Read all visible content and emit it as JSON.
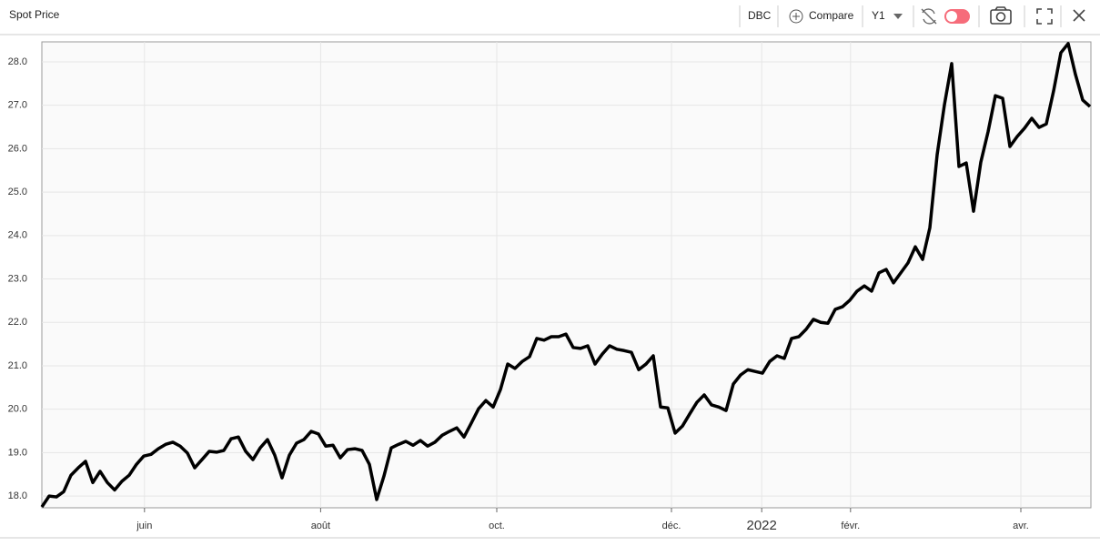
{
  "chart_data": {
    "type": "line",
    "title": "Spot Price",
    "toolbar": {
      "ticker": "DBC",
      "compare": "Compare",
      "range": "Y1"
    },
    "color": "#000000",
    "grid": true,
    "xlim": [
      0,
      144
    ],
    "ylim": [
      17.73,
      28.46
    ],
    "xticks": [
      {
        "value": 14.1,
        "label": "juin"
      },
      {
        "value": 38.3,
        "label": "août"
      },
      {
        "value": 62.5,
        "label": "oct."
      },
      {
        "value": 86.5,
        "label": "déc."
      },
      {
        "value": 98.9,
        "label": "2022"
      },
      {
        "value": 111.1,
        "label": "févr."
      },
      {
        "value": 134.5,
        "label": "avr."
      }
    ],
    "yticks": [
      {
        "value": 18,
        "label": "18.0"
      },
      {
        "value": 19,
        "label": "19.0"
      },
      {
        "value": 20,
        "label": "20.0"
      },
      {
        "value": 21,
        "label": "21.0"
      },
      {
        "value": 22,
        "label": "22.0"
      },
      {
        "value": 23,
        "label": "23.0"
      },
      {
        "value": 24,
        "label": "24.0"
      },
      {
        "value": 25,
        "label": "25.0"
      },
      {
        "value": 26,
        "label": "26.0"
      },
      {
        "value": 27,
        "label": "27.0"
      },
      {
        "value": 28,
        "label": "28.0"
      }
    ],
    "values": [
      17.75,
      18.0,
      17.98,
      18.1,
      18.48,
      18.65,
      18.8,
      18.31,
      18.57,
      18.31,
      18.14,
      18.34,
      18.48,
      18.73,
      18.92,
      18.96,
      19.09,
      19.19,
      19.24,
      19.15,
      18.99,
      18.65,
      18.84,
      19.03,
      19.01,
      19.05,
      19.32,
      19.36,
      19.03,
      18.84,
      19.11,
      19.3,
      18.94,
      18.42,
      18.94,
      19.22,
      19.3,
      19.49,
      19.43,
      19.15,
      19.17,
      18.88,
      19.07,
      19.09,
      19.05,
      18.73,
      17.92,
      18.46,
      19.11,
      19.19,
      19.26,
      19.17,
      19.28,
      19.15,
      19.24,
      19.4,
      19.49,
      19.57,
      19.36,
      19.68,
      20.01,
      20.2,
      20.05,
      20.45,
      21.04,
      20.94,
      21.1,
      21.21,
      21.63,
      21.59,
      21.67,
      21.67,
      21.73,
      21.42,
      21.4,
      21.46,
      21.04,
      21.27,
      21.46,
      21.38,
      21.35,
      21.31,
      20.91,
      21.04,
      21.23,
      20.05,
      20.03,
      19.45,
      19.61,
      19.89,
      20.16,
      20.33,
      20.1,
      20.05,
      19.97,
      20.58,
      20.79,
      20.91,
      20.87,
      20.83,
      21.1,
      21.23,
      21.17,
      21.63,
      21.67,
      21.84,
      22.07,
      22.0,
      21.98,
      22.3,
      22.36,
      22.51,
      22.72,
      22.84,
      22.72,
      23.14,
      23.22,
      22.91,
      23.14,
      23.37,
      23.74,
      23.45,
      24.18,
      25.86,
      27.01,
      27.96,
      25.59,
      25.67,
      24.56,
      25.69,
      26.39,
      27.22,
      27.16,
      26.05,
      26.28,
      26.47,
      26.7,
      26.49,
      26.57,
      27.33,
      28.21,
      28.42,
      27.71,
      27.12,
      26.97
    ]
  }
}
